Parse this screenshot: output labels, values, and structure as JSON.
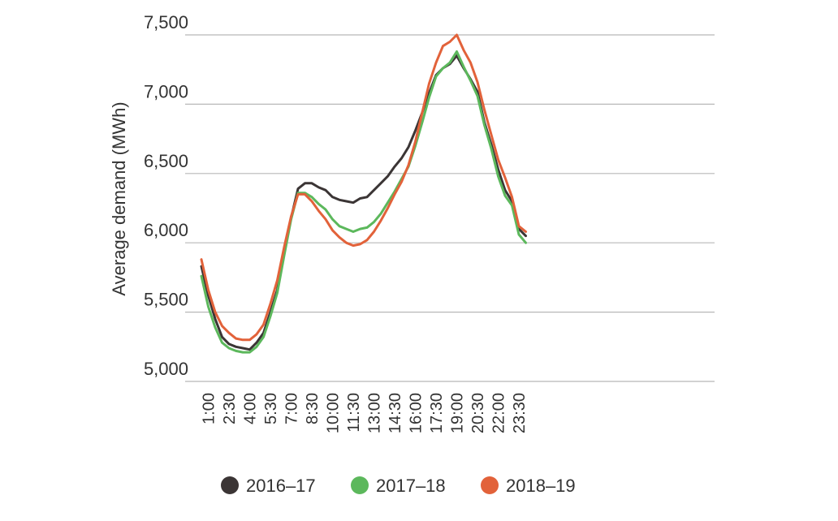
{
  "chart_data": {
    "type": "line",
    "title": "",
    "xlabel": "",
    "ylabel": "Average demand (MWh)",
    "ylim": [
      5000,
      7500
    ],
    "yticks": [
      "5,000",
      "5,500",
      "6,000",
      "6,500",
      "7,000",
      "7,500"
    ],
    "ytick_values": [
      5000,
      5500,
      6000,
      6500,
      7000,
      7500
    ],
    "xtick_labels": [
      "1:00",
      "2:30",
      "4:00",
      "5:30",
      "7:00",
      "8:30",
      "10:00",
      "11:30",
      "13:00",
      "14:30",
      "16:00",
      "17:30",
      "19:00",
      "20:30",
      "22:00",
      "23:30"
    ],
    "x": [
      "0:30",
      "1:00",
      "1:30",
      "2:00",
      "2:30",
      "3:00",
      "3:30",
      "4:00",
      "4:30",
      "5:00",
      "5:30",
      "6:00",
      "6:30",
      "7:00",
      "7:30",
      "8:00",
      "8:30",
      "9:00",
      "9:30",
      "10:00",
      "10:30",
      "11:00",
      "11:30",
      "12:00",
      "12:30",
      "13:00",
      "13:30",
      "14:00",
      "14:30",
      "15:00",
      "15:30",
      "16:00",
      "16:30",
      "17:00",
      "17:30",
      "18:00",
      "18:30",
      "19:00",
      "19:30",
      "20:00",
      "20:30",
      "21:00",
      "21:30",
      "22:00",
      "22:30",
      "23:00",
      "23:30",
      "0:00"
    ],
    "grid": "horizontal",
    "legend_position": "bottom",
    "series": [
      {
        "name": "2016–17",
        "color": "#3b3535",
        "values": [
          5830,
          5620,
          5450,
          5320,
          5270,
          5250,
          5240,
          5230,
          5280,
          5350,
          5500,
          5660,
          5950,
          6180,
          6390,
          6430,
          6430,
          6400,
          6380,
          6330,
          6310,
          6300,
          6290,
          6320,
          6330,
          6380,
          6430,
          6480,
          6550,
          6610,
          6690,
          6810,
          6940,
          7080,
          7210,
          7260,
          7290,
          7350,
          7260,
          7180,
          7090,
          6870,
          6710,
          6530,
          6380,
          6300,
          6100,
          6050
        ]
      },
      {
        "name": "2017–18",
        "color": "#5cb85c",
        "values": [
          5760,
          5540,
          5390,
          5280,
          5240,
          5220,
          5210,
          5210,
          5250,
          5320,
          5470,
          5640,
          5910,
          6170,
          6360,
          6360,
          6330,
          6280,
          6240,
          6170,
          6120,
          6100,
          6080,
          6100,
          6110,
          6150,
          6210,
          6290,
          6370,
          6460,
          6550,
          6700,
          6870,
          7050,
          7200,
          7260,
          7300,
          7380,
          7270,
          7170,
          7060,
          6850,
          6680,
          6480,
          6340,
          6270,
          6060,
          6000
        ]
      },
      {
        "name": "2018–19",
        "color": "#e2623a",
        "values": [
          5880,
          5660,
          5500,
          5400,
          5350,
          5310,
          5300,
          5300,
          5340,
          5410,
          5560,
          5730,
          5970,
          6190,
          6350,
          6350,
          6300,
          6230,
          6170,
          6090,
          6040,
          6000,
          5980,
          5990,
          6020,
          6080,
          6160,
          6250,
          6350,
          6440,
          6560,
          6730,
          6940,
          7150,
          7300,
          7420,
          7450,
          7500,
          7390,
          7300,
          7160,
          6960,
          6780,
          6600,
          6470,
          6330,
          6120,
          6080
        ]
      }
    ]
  }
}
